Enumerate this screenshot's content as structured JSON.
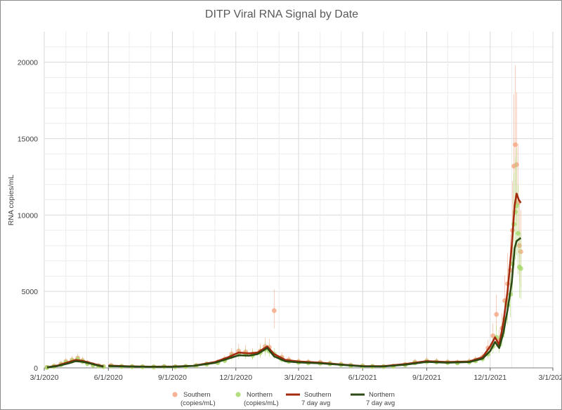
{
  "chart_data": {
    "type": "scatter",
    "title": "DITP Viral RNA Signal by Date",
    "xlabel": "",
    "ylabel": "RNA copies/mL",
    "ylim": [
      0,
      22000
    ],
    "yticks": [
      0,
      5000,
      10000,
      15000,
      20000
    ],
    "xlim": [
      "2020-03-01",
      "2022-03-01"
    ],
    "xticks": [
      "3/1/2020",
      "6/1/2020",
      "9/1/2020",
      "12/1/2020",
      "3/1/2021",
      "6/1/2021",
      "9/1/2021",
      "12/1/2021",
      "3/1/2022"
    ],
    "grid": true,
    "legend_position": "bottom",
    "series": [
      {
        "name": "Southern\n(copies/mL)",
        "kind": "points",
        "color": "#f4a582",
        "x": [
          "2020-03-05",
          "2020-03-15",
          "2020-03-25",
          "2020-04-01",
          "2020-04-10",
          "2020-04-18",
          "2020-04-25",
          "2020-05-02",
          "2020-05-10",
          "2020-05-18",
          "2020-05-25",
          "2020-06-05",
          "2020-06-20",
          "2020-07-05",
          "2020-07-20",
          "2020-08-05",
          "2020-08-20",
          "2020-09-05",
          "2020-09-20",
          "2020-10-05",
          "2020-10-20",
          "2020-11-05",
          "2020-11-15",
          "2020-11-25",
          "2020-12-05",
          "2020-12-15",
          "2020-12-25",
          "2021-01-05",
          "2021-01-12",
          "2021-01-18",
          "2021-01-25",
          "2021-02-05",
          "2021-02-15",
          "2021-03-01",
          "2021-03-15",
          "2021-04-01",
          "2021-04-15",
          "2021-05-01",
          "2021-05-15",
          "2021-06-01",
          "2021-06-15",
          "2021-07-01",
          "2021-07-15",
          "2021-08-01",
          "2021-08-15",
          "2021-09-01",
          "2021-09-15",
          "2021-10-01",
          "2021-10-15",
          "2021-11-01",
          "2021-11-10",
          "2021-11-20",
          "2021-11-28",
          "2021-12-05",
          "2021-12-10",
          "2021-12-14",
          "2021-12-18",
          "2021-12-22",
          "2021-12-26",
          "2021-12-30",
          "2022-01-02",
          "2022-01-04",
          "2022-01-06",
          "2022-01-08",
          "2022-01-10",
          "2022-01-12",
          "2022-01-14"
        ],
        "y": [
          40,
          120,
          260,
          420,
          520,
          640,
          480,
          320,
          200,
          150,
          90,
          160,
          110,
          90,
          80,
          70,
          90,
          80,
          100,
          160,
          260,
          380,
          560,
          900,
          1100,
          1050,
          900,
          1100,
          1400,
          1350,
          3750,
          700,
          520,
          420,
          380,
          360,
          300,
          240,
          180,
          130,
          100,
          90,
          120,
          220,
          380,
          460,
          420,
          380,
          360,
          420,
          520,
          700,
          1300,
          2100,
          3500,
          1800,
          2600,
          4400,
          5500,
          6400,
          9000,
          13200,
          14600,
          13300,
          10800,
          8000,
          7600
        ]
      },
      {
        "name": "Northern\n(copies/mL)",
        "kind": "points",
        "color": "#a6d96a",
        "x": [
          "2020-03-05",
          "2020-03-15",
          "2020-03-25",
          "2020-04-01",
          "2020-04-10",
          "2020-04-18",
          "2020-04-25",
          "2020-05-02",
          "2020-05-10",
          "2020-05-18",
          "2020-05-25",
          "2020-06-05",
          "2020-06-20",
          "2020-07-05",
          "2020-07-20",
          "2020-08-05",
          "2020-08-20",
          "2020-09-05",
          "2020-09-20",
          "2020-10-05",
          "2020-10-20",
          "2020-11-05",
          "2020-11-15",
          "2020-11-25",
          "2020-12-05",
          "2020-12-15",
          "2020-12-25",
          "2021-01-05",
          "2021-01-12",
          "2021-01-18",
          "2021-01-25",
          "2021-02-05",
          "2021-02-15",
          "2021-03-01",
          "2021-03-15",
          "2021-04-01",
          "2021-04-15",
          "2021-05-01",
          "2021-05-15",
          "2021-06-01",
          "2021-06-15",
          "2021-07-01",
          "2021-07-15",
          "2021-08-01",
          "2021-08-15",
          "2021-09-01",
          "2021-09-15",
          "2021-10-01",
          "2021-10-15",
          "2021-11-01",
          "2021-11-10",
          "2021-11-20",
          "2021-11-28",
          "2021-12-05",
          "2021-12-10",
          "2021-12-14",
          "2021-12-18",
          "2021-12-22",
          "2021-12-26",
          "2021-12-30",
          "2022-01-02",
          "2022-01-04",
          "2022-01-06",
          "2022-01-08",
          "2022-01-10",
          "2022-01-12",
          "2022-01-14"
        ],
        "y": [
          30,
          90,
          200,
          360,
          450,
          560,
          420,
          280,
          180,
          120,
          80,
          120,
          90,
          80,
          70,
          60,
          80,
          70,
          90,
          150,
          240,
          340,
          480,
          760,
          900,
          880,
          820,
          1000,
          1200,
          1100,
          900,
          560,
          420,
          360,
          320,
          300,
          260,
          200,
          150,
          110,
          90,
          80,
          100,
          190,
          320,
          400,
          380,
          340,
          320,
          380,
          460,
          600,
          900,
          1400,
          2000,
          1500,
          2100,
          3200,
          4100,
          4800,
          6800,
          9400,
          10200,
          10600,
          8800,
          6600,
          6500
        ]
      },
      {
        "name": "Southern\n7 day avg",
        "kind": "line",
        "color": "#a32a0f",
        "x": [
          "2020-03-05",
          "2020-03-20",
          "2020-04-05",
          "2020-04-15",
          "2020-04-25",
          "2020-05-05",
          "2020-05-15",
          "2020-05-25"
        ],
        "y": [
          40,
          150,
          380,
          520,
          460,
          340,
          210,
          100
        ]
      },
      {
        "name": "Southern\n7 day avg",
        "kind": "line",
        "color": "#a32a0f",
        "x": [
          "2020-06-01",
          "2020-07-01",
          "2020-08-01",
          "2020-09-01",
          "2020-10-01",
          "2020-11-01",
          "2020-11-20",
          "2020-12-05",
          "2020-12-20",
          "2021-01-01",
          "2021-01-15",
          "2021-01-25",
          "2021-02-10",
          "2021-03-01",
          "2021-04-01",
          "2021-05-01",
          "2021-06-01",
          "2021-07-01",
          "2021-08-01",
          "2021-09-01",
          "2021-10-01",
          "2021-11-01",
          "2021-11-20",
          "2021-12-01",
          "2021-12-08",
          "2021-12-14",
          "2021-12-20",
          "2021-12-26",
          "2022-01-01",
          "2022-01-05",
          "2022-01-08",
          "2022-01-11",
          "2022-01-14"
        ],
        "y": [
          150,
          100,
          80,
          85,
          140,
          380,
          700,
          1000,
          950,
          1000,
          1400,
          900,
          520,
          420,
          340,
          220,
          120,
          110,
          250,
          440,
          380,
          420,
          700,
          1400,
          2000,
          1500,
          3000,
          5000,
          8000,
          10600,
          11400,
          11000,
          10800
        ]
      },
      {
        "name": "Northern\n7 day avg",
        "kind": "line",
        "color": "#2d4a14",
        "x": [
          "2020-03-05",
          "2020-03-20",
          "2020-04-05",
          "2020-04-15",
          "2020-04-25",
          "2020-05-05",
          "2020-05-15",
          "2020-05-25"
        ],
        "y": [
          30,
          120,
          300,
          440,
          400,
          300,
          180,
          80
        ]
      },
      {
        "name": "Northern\n7 day avg",
        "kind": "line",
        "color": "#2d4a14",
        "x": [
          "2020-06-01",
          "2020-07-01",
          "2020-08-01",
          "2020-09-01",
          "2020-10-01",
          "2020-11-01",
          "2020-11-20",
          "2020-12-05",
          "2020-12-20",
          "2021-01-01",
          "2021-01-15",
          "2021-01-25",
          "2021-02-10",
          "2021-03-01",
          "2021-04-01",
          "2021-05-01",
          "2021-06-01",
          "2021-07-01",
          "2021-08-01",
          "2021-09-01",
          "2021-10-01",
          "2021-11-01",
          "2021-11-20",
          "2021-12-01",
          "2021-12-08",
          "2021-12-14",
          "2021-12-20",
          "2021-12-26",
          "2022-01-01",
          "2022-01-05",
          "2022-01-08",
          "2022-01-11",
          "2022-01-14"
        ],
        "y": [
          120,
          85,
          70,
          75,
          130,
          330,
          600,
          820,
          800,
          900,
          1300,
          750,
          430,
          360,
          300,
          200,
          100,
          90,
          210,
          390,
          340,
          380,
          600,
          1100,
          1700,
          1300,
          2300,
          3800,
          5600,
          7800,
          8300,
          8400,
          8500
        ]
      }
    ]
  }
}
